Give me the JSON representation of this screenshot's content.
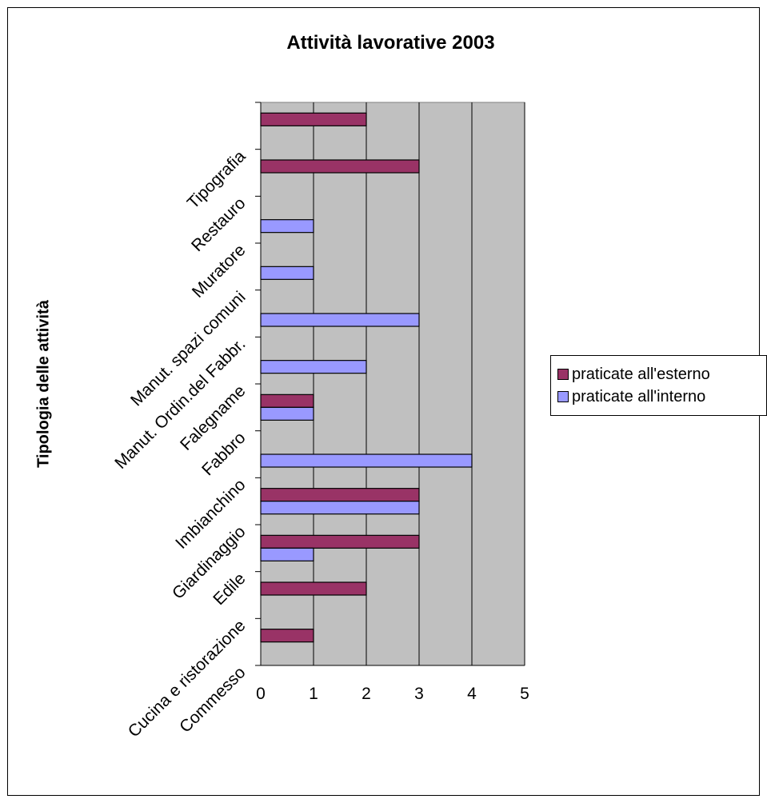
{
  "chart_data": {
    "type": "bar",
    "orientation": "horizontal",
    "title": "Attività lavorative 2003",
    "xlabel": "",
    "ylabel": "Tipologia delle attività",
    "xlim": [
      0,
      5
    ],
    "xticks": [
      "0",
      "1",
      "2",
      "3",
      "4",
      "5"
    ],
    "grid": true,
    "legend_position": "right",
    "categories": [
      "Commesso",
      "Cucina e ristorazione",
      "Edile",
      "Giardinaggio",
      "Imbianchino",
      "Fabbro",
      "Falegname",
      "Manut. Ordin.del Fabbr.",
      "Manut. spazi comuni",
      "Muratore",
      "Restauro",
      "Tipografia"
    ],
    "series": [
      {
        "name": "praticate all'esterno",
        "color": "#993366",
        "values": [
          1,
          2,
          3,
          3,
          0,
          1,
          0,
          0,
          0,
          0,
          3,
          2
        ]
      },
      {
        "name": "praticate all'interno",
        "color": "#9999ff",
        "values": [
          0,
          0,
          1,
          3,
          4,
          1,
          2,
          3,
          1,
          1,
          0,
          0
        ]
      }
    ],
    "plot_background": "#c0c0c0"
  }
}
